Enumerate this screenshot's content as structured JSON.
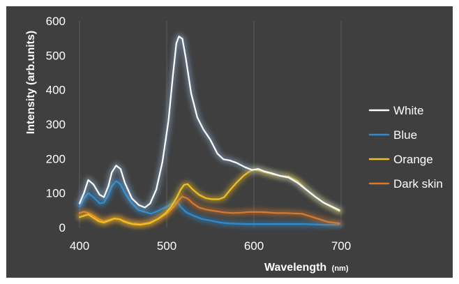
{
  "chart_data": {
    "type": "line",
    "xlabel": "Wavelength",
    "xlabel_unit": "(nm)",
    "ylabel": "Intensity (arb.units)",
    "xlim": [
      400,
      700
    ],
    "ylim": [
      0,
      600
    ],
    "x_ticks": [
      "400",
      "500",
      "600",
      "700"
    ],
    "y_ticks": [
      "0",
      "100",
      "200",
      "300",
      "400",
      "500",
      "600"
    ],
    "grid": "vertical",
    "legend_position": "right",
    "series": [
      {
        "name": "White",
        "color": "#ffffff",
        "glow": "#8fb3d9",
        "points": [
          [
            400,
            70
          ],
          [
            405,
            100
          ],
          [
            410,
            138
          ],
          [
            416,
            125
          ],
          [
            423,
            95
          ],
          [
            428,
            88
          ],
          [
            433,
            120
          ],
          [
            437,
            160
          ],
          [
            442,
            180
          ],
          [
            447,
            170
          ],
          [
            452,
            130
          ],
          [
            460,
            85
          ],
          [
            468,
            65
          ],
          [
            475,
            58
          ],
          [
            481,
            70
          ],
          [
            488,
            110
          ],
          [
            495,
            190
          ],
          [
            502,
            310
          ],
          [
            507,
            440
          ],
          [
            511,
            535
          ],
          [
            514,
            555
          ],
          [
            518,
            548
          ],
          [
            522,
            490
          ],
          [
            528,
            390
          ],
          [
            535,
            320
          ],
          [
            542,
            285
          ],
          [
            550,
            255
          ],
          [
            558,
            215
          ],
          [
            565,
            198
          ],
          [
            572,
            195
          ],
          [
            580,
            188
          ],
          [
            590,
            175
          ],
          [
            598,
            167
          ],
          [
            605,
            170
          ],
          [
            612,
            163
          ],
          [
            620,
            158
          ],
          [
            630,
            150
          ],
          [
            640,
            145
          ],
          [
            650,
            130
          ],
          [
            660,
            110
          ],
          [
            670,
            90
          ],
          [
            680,
            72
          ],
          [
            690,
            60
          ],
          [
            698,
            50
          ]
        ]
      },
      {
        "name": "Blue",
        "color": "#2e8bd0",
        "glow": "#2e8bd0",
        "points": [
          [
            400,
            60
          ],
          [
            405,
            85
          ],
          [
            410,
            100
          ],
          [
            416,
            88
          ],
          [
            423,
            70
          ],
          [
            428,
            72
          ],
          [
            433,
            95
          ],
          [
            437,
            120
          ],
          [
            442,
            135
          ],
          [
            447,
            125
          ],
          [
            452,
            100
          ],
          [
            460,
            70
          ],
          [
            468,
            50
          ],
          [
            475,
            45
          ],
          [
            482,
            40
          ],
          [
            490,
            48
          ],
          [
            498,
            58
          ],
          [
            505,
            68
          ],
          [
            512,
            75
          ],
          [
            516,
            60
          ],
          [
            522,
            45
          ],
          [
            530,
            35
          ],
          [
            540,
            25
          ],
          [
            550,
            20
          ],
          [
            560,
            15
          ],
          [
            570,
            12
          ],
          [
            580,
            11
          ],
          [
            590,
            10
          ],
          [
            600,
            10
          ],
          [
            620,
            10
          ],
          [
            640,
            10
          ],
          [
            660,
            10
          ],
          [
            680,
            8
          ],
          [
            698,
            8
          ]
        ]
      },
      {
        "name": "Orange",
        "color": "#f0c020",
        "glow": "#f0c020",
        "points": [
          [
            400,
            30
          ],
          [
            405,
            34
          ],
          [
            410,
            38
          ],
          [
            416,
            28
          ],
          [
            422,
            18
          ],
          [
            428,
            14
          ],
          [
            434,
            20
          ],
          [
            440,
            26
          ],
          [
            446,
            24
          ],
          [
            452,
            16
          ],
          [
            460,
            10
          ],
          [
            470,
            8
          ],
          [
            480,
            12
          ],
          [
            490,
            25
          ],
          [
            498,
            40
          ],
          [
            505,
            60
          ],
          [
            511,
            85
          ],
          [
            516,
            110
          ],
          [
            520,
            124
          ],
          [
            524,
            126
          ],
          [
            530,
            110
          ],
          [
            537,
            95
          ],
          [
            545,
            85
          ],
          [
            552,
            82
          ],
          [
            560,
            82
          ],
          [
            566,
            88
          ],
          [
            573,
            110
          ],
          [
            580,
            130
          ],
          [
            588,
            150
          ],
          [
            595,
            163
          ],
          [
            600,
            168
          ],
          [
            606,
            165
          ],
          [
            613,
            160
          ],
          [
            620,
            155
          ],
          [
            630,
            150
          ],
          [
            640,
            148
          ],
          [
            650,
            135
          ],
          [
            660,
            110
          ],
          [
            670,
            90
          ],
          [
            680,
            72
          ],
          [
            690,
            58
          ],
          [
            698,
            47
          ]
        ]
      },
      {
        "name": "Dark skin",
        "color": "#d77a2e",
        "glow": "#d77a2e",
        "points": [
          [
            400,
            42
          ],
          [
            405,
            46
          ],
          [
            410,
            42
          ],
          [
            416,
            34
          ],
          [
            422,
            24
          ],
          [
            428,
            18
          ],
          [
            434,
            22
          ],
          [
            440,
            26
          ],
          [
            446,
            24
          ],
          [
            452,
            18
          ],
          [
            460,
            12
          ],
          [
            470,
            10
          ],
          [
            480,
            14
          ],
          [
            490,
            25
          ],
          [
            500,
            40
          ],
          [
            508,
            60
          ],
          [
            514,
            80
          ],
          [
            518,
            90
          ],
          [
            524,
            84
          ],
          [
            530,
            70
          ],
          [
            537,
            58
          ],
          [
            545,
            52
          ],
          [
            555,
            48
          ],
          [
            565,
            44
          ],
          [
            575,
            42
          ],
          [
            585,
            43
          ],
          [
            595,
            45
          ],
          [
            605,
            45
          ],
          [
            615,
            44
          ],
          [
            625,
            42
          ],
          [
            635,
            42
          ],
          [
            645,
            41
          ],
          [
            655,
            40
          ],
          [
            665,
            32
          ],
          [
            675,
            24
          ],
          [
            685,
            16
          ],
          [
            698,
            12
          ]
        ]
      }
    ]
  }
}
